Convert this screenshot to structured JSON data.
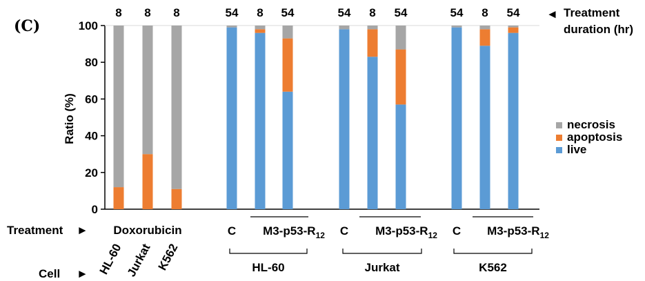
{
  "chart_data": {
    "type": "bar",
    "panel_label": "(C)",
    "ylabel": "Ratio (%)",
    "ylim": [
      0,
      100
    ],
    "yticks": [
      "0",
      "20",
      "40",
      "60",
      "80",
      "100"
    ],
    "grid": "horizontal gridline at 100 only",
    "legend_position": "right",
    "series": [
      {
        "name": "necrosis",
        "color": "#a6a6a6"
      },
      {
        "name": "apoptosis",
        "color": "#ed7d31"
      },
      {
        "name": "live",
        "color": "#5b9bd5"
      }
    ],
    "bars": [
      {
        "duration": "8",
        "live": 0,
        "apoptosis": 12,
        "necrosis": 88
      },
      {
        "duration": "8",
        "live": 0,
        "apoptosis": 30,
        "necrosis": 70
      },
      {
        "duration": "8",
        "live": 0,
        "apoptosis": 11,
        "necrosis": 89
      },
      {
        "duration": "54",
        "live": 99,
        "apoptosis": 0,
        "necrosis": 1
      },
      {
        "duration": "8",
        "live": 96,
        "apoptosis": 2,
        "necrosis": 2
      },
      {
        "duration": "54",
        "live": 64,
        "apoptosis": 29,
        "necrosis": 7
      },
      {
        "duration": "54",
        "live": 98,
        "apoptosis": 0,
        "necrosis": 2
      },
      {
        "duration": "8",
        "live": 83,
        "apoptosis": 15,
        "necrosis": 2
      },
      {
        "duration": "54",
        "live": 57,
        "apoptosis": 30,
        "necrosis": 13
      },
      {
        "duration": "54",
        "live": 99,
        "apoptosis": 0,
        "necrosis": 1
      },
      {
        "duration": "8",
        "live": 89,
        "apoptosis": 9,
        "necrosis": 2
      },
      {
        "duration": "54",
        "live": 96,
        "apoptosis": 3,
        "necrosis": 1
      }
    ],
    "top_annotation": {
      "arrow": "◄",
      "text": [
        "Treatment",
        "duration (hr)"
      ]
    },
    "treatment_row": {
      "label": "Treatment",
      "arrow": "►",
      "doxorubicin": "Doxorubicin",
      "control": "C",
      "peptide_main": "M3-p53-R",
      "peptide_sub": "12"
    },
    "cell_row": {
      "label": "Cell",
      "arrow": "►",
      "dox_cells": [
        "HL-60",
        "Jurkat",
        "K562"
      ],
      "groups": [
        "HL-60",
        "Jurkat",
        "K562"
      ]
    }
  }
}
